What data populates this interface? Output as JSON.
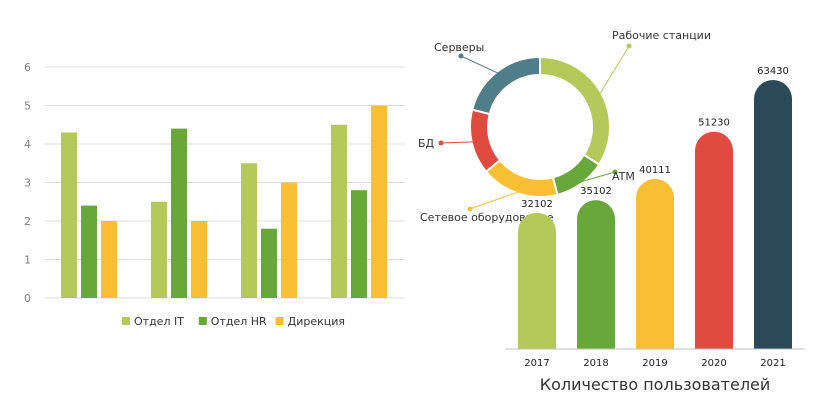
{
  "colors": {
    "light_green": "#b5c85a",
    "green": "#68a83a",
    "yellow": "#f8bf33",
    "red": "#df4b3f",
    "teal": "#4f7d89",
    "dark": "#2b4a57",
    "grid": "#dedede",
    "axis_text": "#808080",
    "label_text": "#333333"
  },
  "chart_data": [
    {
      "type": "bar",
      "title": "",
      "xlabel": "",
      "ylabel": "",
      "ylim": [
        0,
        6
      ],
      "yticks": [
        "0",
        "1",
        "2",
        "3",
        "4",
        "5",
        "6"
      ],
      "grid": true,
      "legend_position": "bottom",
      "categories": [
        "",
        "",
        "",
        ""
      ],
      "series": [
        {
          "name": "Отдел IT",
          "color": "#b5c85a",
          "values": [
            4.3,
            2.5,
            3.5,
            4.5
          ]
        },
        {
          "name": "Отдел HR",
          "color": "#68a83a",
          "values": [
            2.4,
            4.4,
            1.8,
            2.8
          ]
        },
        {
          "name": "Дирекция",
          "color": "#f8bf33",
          "values": [
            2.0,
            2.0,
            3.0,
            5.0
          ]
        }
      ]
    },
    {
      "type": "pie",
      "title": "",
      "donut": true,
      "slices": [
        {
          "label": "Рабочие станции",
          "value": 34,
          "color": "#b5c85a"
        },
        {
          "label": "ATM",
          "value": 12,
          "color": "#68a83a"
        },
        {
          "label": "Сетевое оборудование",
          "value": 18,
          "color": "#f8bf33"
        },
        {
          "label": "БД",
          "value": 15,
          "color": "#df4b3f"
        },
        {
          "label": "Серверы",
          "value": 21,
          "color": "#4f7d89"
        }
      ]
    },
    {
      "type": "bar",
      "title": "Количество пользователей",
      "categories": [
        "2017",
        "2018",
        "2019",
        "2020",
        "2021"
      ],
      "values": [
        32102,
        35102,
        40111,
        51230,
        63430
      ],
      "colors": [
        "#b5c85a",
        "#68a83a",
        "#f8bf33",
        "#df4b3f",
        "#2b4a57"
      ],
      "data_labels": [
        "32102",
        "35102",
        "40111",
        "51230",
        "63430"
      ],
      "ylim": [
        0,
        70000
      ],
      "grid": false
    }
  ]
}
